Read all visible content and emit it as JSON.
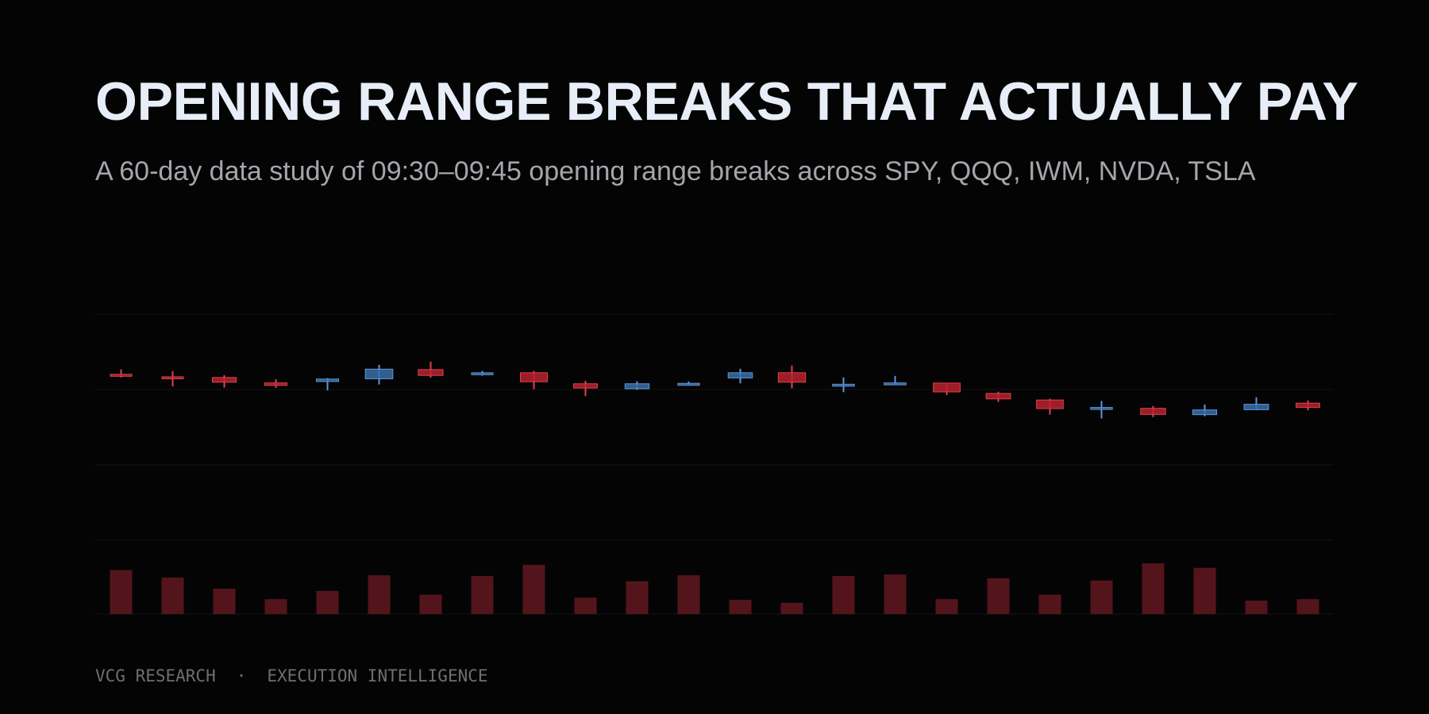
{
  "title": "OPENING RANGE BREAKS THAT ACTUALLY PAY",
  "subtitle": "A 60-day data study of 09:30–09:45 opening range breaks across SPY, QQQ, IWM, NVDA, TSLA",
  "footer": {
    "left": "VCG RESEARCH",
    "separator": "·",
    "right": "EXECUTION INTELLIGENCE"
  },
  "colors": {
    "background": "#040404",
    "up_fill": "#3a6fa8",
    "up_stroke": "#5c96d6",
    "down_fill": "#b8222f",
    "down_stroke": "#e0404c",
    "volume": "#54141b",
    "grid": "#141414"
  },
  "chart_data": [
    {
      "type": "candlestick",
      "title": "",
      "xlabel": "",
      "ylabel": "",
      "grid": true,
      "ylim": [
        0,
        100
      ],
      "candles": [
        {
          "open": 73.3,
          "close": 72.8,
          "high": 75.5,
          "low": 71.9
        },
        {
          "open": 72.2,
          "close": 71.7,
          "high": 74.7,
          "low": 67.9
        },
        {
          "open": 71.9,
          "close": 69.8,
          "high": 72.9,
          "low": 67.4
        },
        {
          "open": 69.5,
          "close": 68.4,
          "high": 71.1,
          "low": 67.3
        },
        {
          "open": 70.1,
          "close": 71.2,
          "high": 71.6,
          "low": 66.2
        },
        {
          "open": 71.3,
          "close": 75.6,
          "high": 77.5,
          "low": 68.8
        },
        {
          "open": 75.4,
          "close": 72.8,
          "high": 78.9,
          "low": 71.8
        },
        {
          "open": 73.5,
          "close": 74.0,
          "high": 74.8,
          "low": 72.7
        },
        {
          "open": 74.0,
          "close": 70.0,
          "high": 74.8,
          "low": 66.7
        },
        {
          "open": 69.1,
          "close": 67.2,
          "high": 70.4,
          "low": 63.6
        },
        {
          "open": 66.9,
          "close": 69.1,
          "high": 70.2,
          "low": 66.4
        },
        {
          "open": 68.7,
          "close": 69.3,
          "high": 70.1,
          "low": 68.6
        },
        {
          "open": 71.7,
          "close": 74.0,
          "high": 75.8,
          "low": 69.3
        },
        {
          "open": 74.0,
          "close": 69.8,
          "high": 77.2,
          "low": 67.1
        },
        {
          "open": 68.2,
          "close": 68.9,
          "high": 71.9,
          "low": 65.4
        },
        {
          "open": 68.7,
          "close": 69.5,
          "high": 72.6,
          "low": 68.6
        },
        {
          "open": 69.4,
          "close": 65.5,
          "high": 69.4,
          "low": 64.1
        },
        {
          "open": 64.8,
          "close": 62.4,
          "high": 65.6,
          "low": 61.1
        },
        {
          "open": 61.9,
          "close": 58.1,
          "high": 62.5,
          "low": 55.4
        },
        {
          "open": 57.9,
          "close": 58.6,
          "high": 61.5,
          "low": 53.7
        },
        {
          "open": 58.2,
          "close": 55.5,
          "high": 59.2,
          "low": 54.3
        },
        {
          "open": 55.4,
          "close": 57.5,
          "high": 59.9,
          "low": 54.7
        },
        {
          "open": 57.6,
          "close": 60.0,
          "high": 63.1,
          "low": 57.4
        },
        {
          "open": 60.5,
          "close": 58.6,
          "high": 61.7,
          "low": 57.3
        }
      ]
    },
    {
      "type": "bar",
      "title": "",
      "ylim": [
        0,
        100
      ],
      "values": [
        59,
        49,
        34,
        20,
        31,
        52,
        26,
        51,
        66,
        22,
        44,
        52,
        19,
        15,
        51,
        53,
        20,
        48,
        26,
        45,
        68,
        62,
        18,
        20
      ]
    }
  ]
}
